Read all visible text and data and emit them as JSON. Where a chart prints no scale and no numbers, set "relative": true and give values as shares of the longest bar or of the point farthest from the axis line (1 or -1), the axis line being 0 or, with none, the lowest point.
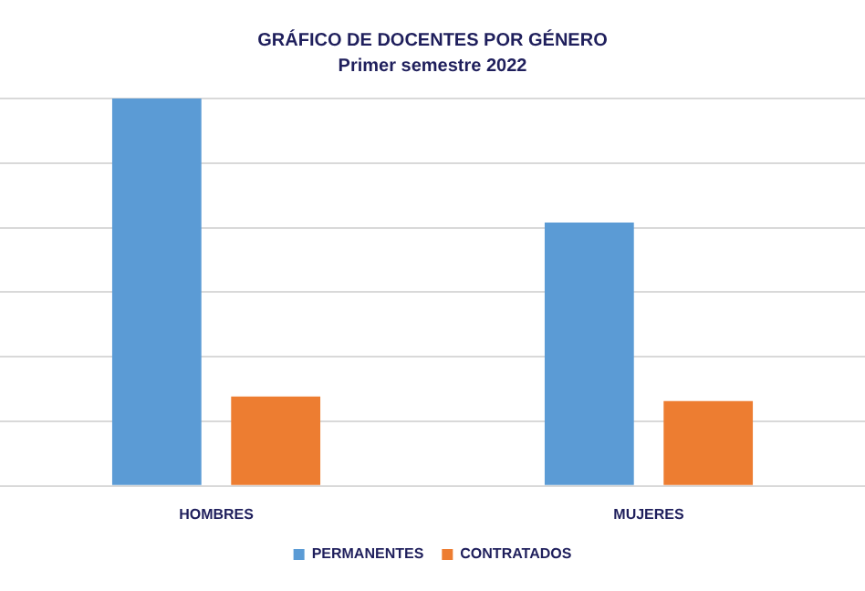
{
  "chart_data": {
    "type": "bar",
    "title": "GRÁFICO DE DOCENTES POR GÉNERO",
    "subtitle": "Primer semestre 2022",
    "categories": [
      "HOMBRES",
      "MUJERES"
    ],
    "relative": true,
    "grid": true,
    "legend": "bottom",
    "series": [
      {
        "name": "PERMANENTES",
        "color": "#5b9bd5",
        "values": [
          1,
          0.68
        ]
      },
      {
        "name": "CONTRATADOS",
        "color": "#ed7d31",
        "values": [
          0.231,
          0.219
        ]
      }
    ]
  }
}
